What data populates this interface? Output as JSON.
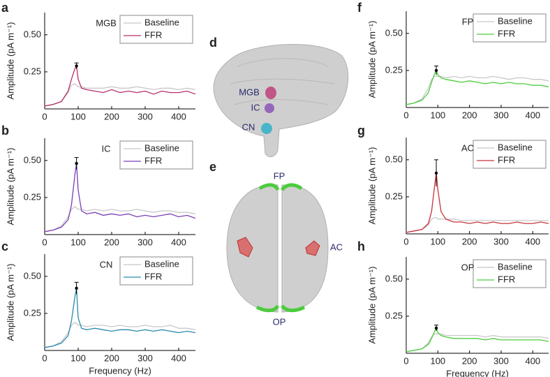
{
  "chart_data": [
    {
      "type": "line",
      "panel": "a",
      "title": "MGB",
      "ylabel": "Amplitude (pA m⁻¹)",
      "x": [
        0,
        25,
        50,
        70,
        80,
        90,
        95,
        100,
        110,
        125,
        150,
        175,
        200,
        225,
        250,
        275,
        300,
        325,
        350,
        375,
        400,
        425,
        450
      ],
      "series": [
        {
          "name": "Baseline",
          "color": "#c8c8c8",
          "values": [
            0.02,
            0.03,
            0.05,
            0.11,
            0.16,
            0.17,
            0.16,
            0.15,
            0.15,
            0.14,
            0.14,
            0.14,
            0.15,
            0.14,
            0.14,
            0.15,
            0.14,
            0.13,
            0.14,
            0.14,
            0.13,
            0.14,
            0.13
          ]
        },
        {
          "name": "FFR",
          "color": "#b5306a",
          "values": [
            0.02,
            0.03,
            0.05,
            0.12,
            0.2,
            0.27,
            0.29,
            0.2,
            0.14,
            0.13,
            0.12,
            0.11,
            0.13,
            0.11,
            0.12,
            0.11,
            0.12,
            0.1,
            0.12,
            0.11,
            0.11,
            0.12,
            0.1
          ]
        }
      ],
      "error_bar": {
        "x": 95,
        "value": 0.29,
        "error": 0.02
      },
      "xlim": [
        0,
        450
      ],
      "ylim": [
        0,
        0.65
      ],
      "xticks": [
        0,
        100,
        200,
        300,
        400
      ],
      "yticks": [
        0.25,
        {
          "value": 0.5,
          "label": "0.50"
        }
      ]
    },
    {
      "type": "line",
      "panel": "b",
      "title": "IC",
      "ylabel": "Amplitude (pA m⁻¹)",
      "x": [
        0,
        25,
        50,
        70,
        80,
        90,
        95,
        100,
        110,
        125,
        150,
        175,
        200,
        225,
        250,
        275,
        300,
        325,
        350,
        375,
        400,
        425,
        450
      ],
      "series": [
        {
          "name": "Baseline",
          "color": "#c8c8c8",
          "values": [
            0.02,
            0.03,
            0.06,
            0.12,
            0.17,
            0.19,
            0.18,
            0.17,
            0.17,
            0.16,
            0.17,
            0.16,
            0.17,
            0.16,
            0.16,
            0.17,
            0.16,
            0.15,
            0.16,
            0.16,
            0.15,
            0.15,
            0.14
          ]
        },
        {
          "name": "FFR",
          "color": "#7b3fb5",
          "values": [
            0.02,
            0.03,
            0.05,
            0.1,
            0.2,
            0.4,
            0.48,
            0.3,
            0.16,
            0.14,
            0.15,
            0.13,
            0.14,
            0.13,
            0.14,
            0.12,
            0.13,
            0.12,
            0.13,
            0.14,
            0.12,
            0.13,
            0.11
          ]
        }
      ],
      "error_bar": {
        "x": 95,
        "value": 0.48,
        "error": 0.04
      },
      "xlim": [
        0,
        450
      ],
      "ylim": [
        0,
        0.65
      ],
      "xticks": [
        0,
        100,
        200,
        300,
        400
      ],
      "yticks": [
        0.25,
        {
          "value": 0.5,
          "label": "0.50"
        }
      ]
    },
    {
      "type": "line",
      "panel": "c",
      "title": "CN",
      "ylabel": "Amplitude (pA m⁻¹)",
      "xlabel": "Frequency (Hz)",
      "x": [
        0,
        25,
        50,
        70,
        80,
        90,
        95,
        100,
        110,
        125,
        150,
        175,
        200,
        225,
        250,
        275,
        300,
        325,
        350,
        375,
        400,
        425,
        450
      ],
      "series": [
        {
          "name": "Baseline",
          "color": "#c8c8c8",
          "values": [
            0.02,
            0.03,
            0.06,
            0.12,
            0.17,
            0.19,
            0.18,
            0.17,
            0.17,
            0.16,
            0.17,
            0.17,
            0.16,
            0.17,
            0.16,
            0.16,
            0.17,
            0.16,
            0.16,
            0.17,
            0.15,
            0.15,
            0.14
          ]
        },
        {
          "name": "FFR",
          "color": "#2a8bab",
          "values": [
            0.02,
            0.03,
            0.05,
            0.1,
            0.2,
            0.36,
            0.42,
            0.22,
            0.15,
            0.14,
            0.15,
            0.14,
            0.13,
            0.14,
            0.14,
            0.13,
            0.14,
            0.13,
            0.14,
            0.13,
            0.12,
            0.13,
            0.12
          ]
        }
      ],
      "error_bar": {
        "x": 95,
        "value": 0.42,
        "error": 0.04
      },
      "xlim": [
        0,
        450
      ],
      "ylim": [
        0,
        0.65
      ],
      "xticks": [
        0,
        100,
        200,
        300,
        400
      ],
      "yticks": [
        0.25,
        {
          "value": 0.5,
          "label": "0.50"
        }
      ]
    },
    {
      "type": "line",
      "panel": "f",
      "title": "FP",
      "ylabel": "Amplitude (pA m⁻¹)",
      "x": [
        0,
        25,
        50,
        70,
        80,
        90,
        95,
        100,
        110,
        125,
        150,
        175,
        200,
        225,
        250,
        275,
        300,
        325,
        350,
        375,
        400,
        425,
        450
      ],
      "series": [
        {
          "name": "Baseline",
          "color": "#c8c8c8",
          "values": [
            0.02,
            0.03,
            0.06,
            0.13,
            0.19,
            0.21,
            0.21,
            0.21,
            0.21,
            0.2,
            0.21,
            0.2,
            0.21,
            0.2,
            0.2,
            0.21,
            0.2,
            0.19,
            0.2,
            0.2,
            0.19,
            0.19,
            0.18
          ]
        },
        {
          "name": "FFR",
          "color": "#4ccc3c",
          "values": [
            0.02,
            0.03,
            0.05,
            0.1,
            0.17,
            0.23,
            0.25,
            0.22,
            0.2,
            0.19,
            0.18,
            0.17,
            0.18,
            0.17,
            0.16,
            0.17,
            0.16,
            0.17,
            0.16,
            0.16,
            0.15,
            0.15,
            0.14
          ]
        }
      ],
      "error_bar": {
        "x": 95,
        "value": 0.25,
        "error": 0.03
      },
      "xlim": [
        0,
        450
      ],
      "ylim": [
        0,
        0.65
      ],
      "xticks": [
        0,
        100,
        200,
        300,
        400
      ],
      "yticks": [
        0.25,
        {
          "value": 0.5,
          "label": "0.50"
        }
      ]
    },
    {
      "type": "line",
      "panel": "g",
      "title": "AC",
      "ylabel": "Amplitude (pA m⁻¹)",
      "x": [
        0,
        25,
        50,
        70,
        80,
        90,
        95,
        100,
        110,
        125,
        150,
        175,
        200,
        225,
        250,
        275,
        300,
        325,
        350,
        375,
        400,
        425,
        450
      ],
      "series": [
        {
          "name": "Baseline",
          "color": "#c8c8c8",
          "values": [
            0.01,
            0.02,
            0.03,
            0.06,
            0.1,
            0.11,
            0.11,
            0.1,
            0.1,
            0.1,
            0.1,
            0.09,
            0.09,
            0.09,
            0.09,
            0.09,
            0.09,
            0.09,
            0.09,
            0.09,
            0.09,
            0.09,
            0.09
          ]
        },
        {
          "name": "FFR",
          "color": "#c8323a",
          "values": [
            0.01,
            0.02,
            0.03,
            0.07,
            0.15,
            0.33,
            0.41,
            0.3,
            0.15,
            0.1,
            0.08,
            0.08,
            0.07,
            0.08,
            0.07,
            0.08,
            0.07,
            0.07,
            0.08,
            0.07,
            0.07,
            0.08,
            0.07
          ]
        }
      ],
      "error_bar": {
        "x": 95,
        "value": 0.41,
        "error": 0.09
      },
      "xlim": [
        0,
        450
      ],
      "ylim": [
        0,
        0.65
      ],
      "xticks": [
        0,
        100,
        200,
        300,
        400
      ],
      "yticks": [
        0.25,
        {
          "value": 0.5,
          "label": "0.50"
        }
      ]
    },
    {
      "type": "line",
      "panel": "h",
      "title": "OP",
      "ylabel": "Amplitude (pA m⁻¹)",
      "xlabel": "Frequency (Hz)",
      "x": [
        0,
        25,
        50,
        70,
        80,
        90,
        95,
        100,
        110,
        125,
        150,
        175,
        200,
        225,
        250,
        275,
        300,
        325,
        350,
        375,
        400,
        425,
        450
      ],
      "series": [
        {
          "name": "Baseline",
          "color": "#c8c8c8",
          "values": [
            0.01,
            0.02,
            0.03,
            0.07,
            0.11,
            0.13,
            0.13,
            0.13,
            0.13,
            0.12,
            0.12,
            0.12,
            0.12,
            0.12,
            0.11,
            0.12,
            0.11,
            0.11,
            0.11,
            0.11,
            0.11,
            0.11,
            0.1
          ]
        },
        {
          "name": "FFR",
          "color": "#4ccc3c",
          "values": [
            0.01,
            0.02,
            0.03,
            0.06,
            0.1,
            0.15,
            0.17,
            0.14,
            0.12,
            0.11,
            0.1,
            0.1,
            0.1,
            0.1,
            0.09,
            0.1,
            0.09,
            0.09,
            0.09,
            0.09,
            0.09,
            0.09,
            0.08
          ]
        }
      ],
      "error_bar": {
        "x": 95,
        "value": 0.17,
        "error": 0.02
      },
      "xlim": [
        0,
        450
      ],
      "ylim": [
        0,
        0.65
      ],
      "xticks": [
        0,
        100,
        200,
        300,
        400
      ],
      "yticks": [
        0.25,
        {
          "value": 0.5,
          "label": "0.50"
        }
      ]
    }
  ],
  "figure": {
    "panels": {
      "d": {
        "letter": "d",
        "labels": [
          "MGB",
          "IC",
          "CN"
        ]
      },
      "e": {
        "letter": "e",
        "labels": [
          "FP",
          "AC",
          "OP"
        ]
      }
    }
  }
}
